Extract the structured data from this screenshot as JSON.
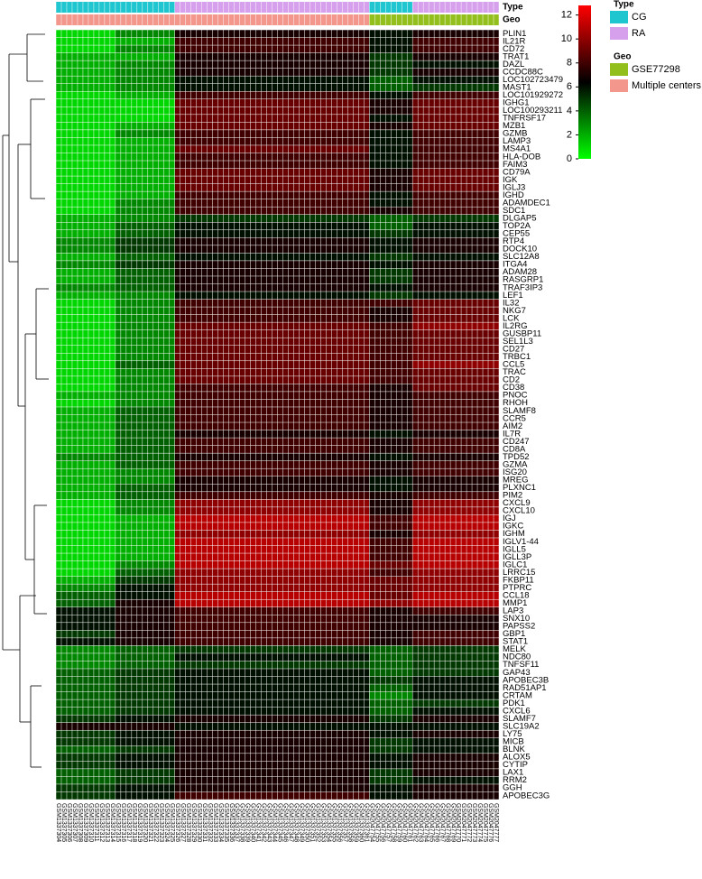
{
  "chart_data": {
    "type": "heatmap",
    "annotation_titles": [
      "Type",
      "Geo"
    ],
    "legend": {
      "Type": [
        {
          "name": "CG",
          "color": "#1fc6cf"
        },
        {
          "name": "RA",
          "color": "#d6a0ec"
        }
      ],
      "Geo": [
        {
          "name": "GSE77298",
          "color": "#93bf1c"
        },
        {
          "name": "Multiple centers",
          "color": "#f3968c"
        }
      ]
    },
    "blocks": [
      {
        "size": 11,
        "Type": "CG",
        "Geo": "Multiple centers"
      },
      {
        "size": 11,
        "Type": "CG",
        "Geo": "Multiple centers"
      },
      {
        "size": 36,
        "Type": "RA",
        "Geo": "Multiple centers"
      },
      {
        "size": 8,
        "Type": "CG",
        "Geo": "GSE77298"
      },
      {
        "size": 16,
        "Type": "RA",
        "Geo": "GSE77298"
      }
    ],
    "colorscale": [
      "#00ff00",
      "#000000",
      "#ff0000"
    ],
    "clim": [
      0,
      12.8
    ],
    "cticks": [
      0,
      2,
      4,
      6,
      8,
      10,
      12
    ],
    "columns": [
      "GSM1337304",
      "GSM1337305",
      "GSM1337306",
      "GSM1337307",
      "GSM1337308",
      "GSM1337309",
      "GSM1337310",
      "GSM1337311",
      "GSM1337312",
      "GSM1337313",
      "GSM1337314",
      "GSM1337315",
      "GSM1337316",
      "GSM1337317",
      "GSM1337318",
      "GSM1337319",
      "GSM1337320",
      "GSM1337321",
      "GSM1337322",
      "GSM1337323",
      "GSM1337324",
      "GSM1337325",
      "GSM1337326",
      "GSM1337327",
      "GSM1337328",
      "GSM1337329",
      "GSM1337330",
      "GSM1337331",
      "GSM1337332",
      "GSM1337333",
      "GSM1337334",
      "GSM1337335",
      "GSM1337336",
      "GSM1337337",
      "GSM1337338",
      "GSM1337339",
      "GSM1337340",
      "GSM1337341",
      "GSM1337342",
      "GSM1337343",
      "GSM1337344",
      "GSM1337345",
      "GSM1337346",
      "GSM1337347",
      "GSM1337348",
      "GSM1337349",
      "GSM1337350",
      "GSM1337351",
      "GSM1337352",
      "GSM1337353",
      "GSM1337354",
      "GSM1337355",
      "GSM1337356",
      "GSM1337357",
      "GSM1337358",
      "GSM1337359",
      "GSM1337360",
      "GSM1337361",
      "GSM2047754",
      "GSM2047755",
      "GSM2047756",
      "GSM2047757",
      "GSM2047758",
      "GSM2047759",
      "GSM2047760",
      "GSM2047761",
      "GSM2047762",
      "GSM2047763",
      "GSM2047764",
      "GSM2047765",
      "GSM2047766",
      "GSM2047767",
      "GSM2047768",
      "GSM2047769",
      "GSM2047770",
      "GSM2047771",
      "GSM2047772",
      "GSM2047773",
      "GSM2047774",
      "GSM2047775",
      "GSM2047776",
      "GSM2047777"
    ],
    "rows": [
      "PLIN1",
      "IL21R",
      "CD72",
      "TRAT1",
      "DAZL",
      "CCDC88C",
      "LOC102723479",
      "MAST1",
      "LOC101929272",
      "IGHG1",
      "LOC100293211",
      "TNFRSF17",
      "MZB1",
      "GZMB",
      "LAMP3",
      "MS4A1",
      "HLA-DOB",
      "FAIM3",
      "CD79A",
      "IGK",
      "IGLJ3",
      "IGHD",
      "ADAMDEC1",
      "SDC1",
      "DLGAP5",
      "TOP2A",
      "CEP55",
      "RTP4",
      "DOCK10",
      "SLC12A8",
      "ITGA4",
      "ADAM28",
      "RASGRP1",
      "TRAF3IP3",
      "LEF1",
      "IL32",
      "NKG7",
      "LCK",
      "IL2RG",
      "GUSBP11",
      "SEL1L3",
      "CD27",
      "TRBC1",
      "CCL5",
      "TRAC",
      "CD2",
      "CD38",
      "PNOC",
      "RHOH",
      "SLAMF8",
      "CCR5",
      "AIM2",
      "IL7R",
      "CD247",
      "CD8A",
      "TPD52",
      "GZMA",
      "ISG20",
      "MREG",
      "PLXNC1",
      "PIM2",
      "CXCL9",
      "CXCL10",
      "IGJ",
      "IGKC",
      "IGHM",
      "IGLV1-44",
      "IGLL5",
      "IGLL3P",
      "IGLC1",
      "LRRC15",
      "FKBP11",
      "PTPRC",
      "CCL18",
      "MMP1",
      "LAP3",
      "SNX10",
      "PAPSS2",
      "GBP1",
      "STAT1",
      "MELK",
      "NDC80",
      "TNFSF11",
      "GAP43",
      "APOBEC3B",
      "RAD51AP1",
      "CRTAM",
      "PDK1",
      "CXCL6",
      "SLAMF7",
      "SLC19A2",
      "LY75",
      "MICB",
      "BLNK",
      "ALOX5",
      "CYTIP",
      "LAX1",
      "RRM2",
      "GGH",
      "APOBEC3G"
    ],
    "values": [
      [
        1,
        3,
        7,
        6,
        7
      ],
      [
        1,
        2,
        8,
        6,
        8
      ],
      [
        1,
        3,
        8,
        6,
        8
      ],
      [
        2,
        2,
        7,
        5,
        7
      ],
      [
        2,
        3,
        7,
        5,
        6
      ],
      [
        2,
        3,
        7,
        5,
        7
      ],
      [
        2,
        3,
        6,
        4,
        6
      ],
      [
        2,
        3,
        6,
        4,
        5
      ],
      [
        1,
        2,
        8,
        6,
        8
      ],
      [
        1,
        1,
        9,
        7,
        9
      ],
      [
        1,
        1,
        9,
        7,
        9
      ],
      [
        1,
        1,
        9,
        6,
        9
      ],
      [
        1,
        2,
        9,
        7,
        9
      ],
      [
        1,
        3,
        8,
        6,
        8
      ],
      [
        1,
        2,
        8,
        6,
        8
      ],
      [
        1,
        2,
        9,
        6,
        8
      ],
      [
        1,
        2,
        8,
        6,
        8
      ],
      [
        1,
        2,
        8,
        6,
        8
      ],
      [
        1,
        2,
        9,
        7,
        9
      ],
      [
        1,
        2,
        9,
        7,
        9
      ],
      [
        1,
        2,
        9,
        7,
        9
      ],
      [
        1,
        2,
        8,
        6,
        8
      ],
      [
        1,
        3,
        8,
        6,
        8
      ],
      [
        1,
        3,
        8,
        7,
        8
      ],
      [
        2,
        3,
        5,
        4,
        5
      ],
      [
        2,
        4,
        6,
        4,
        6
      ],
      [
        2,
        4,
        6,
        5,
        6
      ],
      [
        3,
        5,
        7,
        6,
        7
      ],
      [
        3,
        5,
        7,
        6,
        7
      ],
      [
        2,
        4,
        6,
        5,
        6
      ],
      [
        3,
        5,
        7,
        6,
        7
      ],
      [
        2,
        4,
        7,
        5,
        7
      ],
      [
        2,
        4,
        7,
        5,
        7
      ],
      [
        3,
        4,
        7,
        6,
        7
      ],
      [
        2,
        3,
        6,
        5,
        6
      ],
      [
        1,
        3,
        8,
        8,
        9
      ],
      [
        1,
        3,
        8,
        7,
        9
      ],
      [
        1,
        3,
        8,
        7,
        9
      ],
      [
        1,
        3,
        9,
        8,
        10
      ],
      [
        1,
        3,
        9,
        8,
        9
      ],
      [
        1,
        3,
        9,
        8,
        9
      ],
      [
        1,
        3,
        9,
        8,
        9
      ],
      [
        1,
        3,
        9,
        8,
        9
      ],
      [
        1,
        4,
        9,
        8,
        10
      ],
      [
        1,
        3,
        9,
        8,
        9
      ],
      [
        1,
        3,
        9,
        8,
        9
      ],
      [
        1,
        3,
        8,
        7,
        9
      ],
      [
        2,
        3,
        8,
        7,
        8
      ],
      [
        1,
        3,
        8,
        7,
        8
      ],
      [
        2,
        4,
        8,
        7,
        8
      ],
      [
        2,
        4,
        8,
        7,
        8
      ],
      [
        2,
        4,
        8,
        7,
        8
      ],
      [
        2,
        4,
        7,
        6,
        7
      ],
      [
        2,
        4,
        8,
        7,
        8
      ],
      [
        2,
        4,
        8,
        7,
        8
      ],
      [
        3,
        4,
        7,
        6,
        7
      ],
      [
        2,
        4,
        8,
        7,
        8
      ],
      [
        2,
        3,
        8,
        7,
        8
      ],
      [
        2,
        3,
        7,
        6,
        7
      ],
      [
        2,
        4,
        7,
        6,
        7
      ],
      [
        2,
        4,
        8,
        7,
        8
      ],
      [
        1,
        3,
        10,
        7,
        10
      ],
      [
        1,
        3,
        10,
        7,
        10
      ],
      [
        1,
        2,
        11,
        8,
        11
      ],
      [
        1,
        2,
        11,
        8,
        11
      ],
      [
        1,
        2,
        10,
        7,
        10
      ],
      [
        1,
        2,
        11,
        8,
        11
      ],
      [
        1,
        2,
        11,
        8,
        11
      ],
      [
        1,
        2,
        11,
        8,
        11
      ],
      [
        1,
        3,
        11,
        9,
        11
      ],
      [
        1,
        4,
        10,
        8,
        10
      ],
      [
        2,
        5,
        10,
        9,
        10
      ],
      [
        3,
        6,
        10,
        9,
        10
      ],
      [
        4,
        6,
        11,
        9,
        11
      ],
      [
        4,
        7,
        11,
        10,
        11
      ],
      [
        6,
        7,
        8,
        7,
        8
      ],
      [
        6,
        7,
        8,
        7,
        7
      ],
      [
        6,
        7,
        8,
        7,
        7
      ],
      [
        5,
        7,
        8,
        7,
        8
      ],
      [
        6,
        7,
        8,
        7,
        8
      ],
      [
        3,
        4,
        5,
        4,
        5
      ],
      [
        3,
        4,
        6,
        4,
        5
      ],
      [
        3,
        4,
        5,
        4,
        5
      ],
      [
        4,
        5,
        6,
        4,
        5
      ],
      [
        4,
        5,
        6,
        5,
        6
      ],
      [
        4,
        5,
        6,
        4,
        6
      ],
      [
        4,
        5,
        6,
        3,
        6
      ],
      [
        4,
        5,
        6,
        4,
        5
      ],
      [
        4,
        5,
        6,
        4,
        6
      ],
      [
        5,
        6,
        7,
        5,
        7
      ],
      [
        7,
        7,
        6,
        6,
        6
      ],
      [
        5,
        6,
        7,
        6,
        7
      ],
      [
        5,
        6,
        7,
        5,
        6
      ],
      [
        4,
        5,
        7,
        5,
        6
      ],
      [
        5,
        6,
        7,
        6,
        7
      ],
      [
        5,
        6,
        7,
        6,
        7
      ],
      [
        4,
        5,
        7,
        5,
        7
      ],
      [
        4,
        5,
        7,
        5,
        6
      ],
      [
        5,
        6,
        7,
        6,
        7
      ],
      [
        5,
        6,
        8,
        6,
        7
      ]
    ]
  }
}
